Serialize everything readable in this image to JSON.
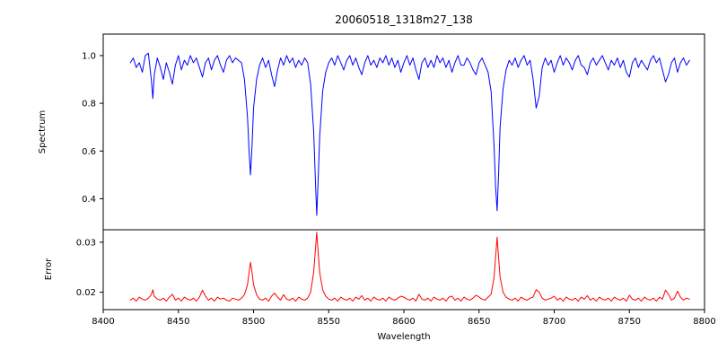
{
  "chart_data": {
    "type": "line",
    "title": "20060518_1318m27_138",
    "xlabel": "Wavelength",
    "xlim": [
      8400,
      8800
    ],
    "xticks": [
      8400,
      8450,
      8500,
      8550,
      8600,
      8650,
      8700,
      8750,
      8800
    ],
    "xtick_labels": [
      "8400",
      "8450",
      "8500",
      "8550",
      "8600",
      "8650",
      "8700",
      "8750",
      "8800"
    ],
    "panels": [
      {
        "ylabel": "Spectrum",
        "ylim": [
          0.27,
          1.09
        ],
        "yticks": [
          0.4,
          0.6,
          0.8,
          1.0
        ],
        "ytick_labels": [
          "0.4",
          "0.6",
          "0.8",
          "1.0"
        ],
        "color": "#0000ff",
        "series_key": "spectrum"
      },
      {
        "ylabel": "Error",
        "ylim": [
          0.0165,
          0.0325
        ],
        "yticks": [
          0.02,
          0.03
        ],
        "ytick_labels": [
          "0.02",
          "0.03"
        ],
        "color": "#ff0000",
        "series_key": "error"
      }
    ],
    "grid": false,
    "legend": "none",
    "x": [
      8418,
      8420,
      8422,
      8424,
      8426,
      8428,
      8430,
      8432,
      8433,
      8434,
      8436,
      8438,
      8440,
      8442,
      8444,
      8446,
      8448,
      8450,
      8452,
      8454,
      8456,
      8458,
      8460,
      8462,
      8464,
      8466,
      8468,
      8470,
      8472,
      8474,
      8476,
      8478,
      8480,
      8482,
      8484,
      8486,
      8488,
      8490,
      8492,
      8494,
      8496,
      8497,
      8498,
      8499,
      8500,
      8502,
      8504,
      8506,
      8508,
      8510,
      8512,
      8514,
      8516,
      8518,
      8520,
      8522,
      8524,
      8526,
      8528,
      8530,
      8532,
      8534,
      8536,
      8538,
      8540,
      8541,
      8542,
      8543,
      8544,
      8546,
      8548,
      8550,
      8552,
      8554,
      8556,
      8558,
      8560,
      8562,
      8564,
      8566,
      8568,
      8570,
      8572,
      8574,
      8576,
      8578,
      8580,
      8582,
      8584,
      8586,
      8588,
      8590,
      8592,
      8594,
      8596,
      8598,
      8600,
      8602,
      8604,
      8606,
      8608,
      8610,
      8612,
      8614,
      8616,
      8618,
      8620,
      8622,
      8624,
      8626,
      8628,
      8630,
      8632,
      8634,
      8636,
      8638,
      8640,
      8642,
      8644,
      8646,
      8648,
      8650,
      8652,
      8654,
      8656,
      8658,
      8660,
      8661,
      8662,
      8663,
      8664,
      8666,
      8668,
      8670,
      8672,
      8674,
      8676,
      8678,
      8680,
      8682,
      8684,
      8686,
      8688,
      8690,
      8692,
      8694,
      8696,
      8698,
      8700,
      8702,
      8704,
      8706,
      8708,
      8710,
      8712,
      8714,
      8716,
      8718,
      8720,
      8722,
      8724,
      8726,
      8728,
      8730,
      8732,
      8734,
      8736,
      8738,
      8740,
      8742,
      8744,
      8746,
      8748,
      8750,
      8752,
      8754,
      8756,
      8758,
      8760,
      8762,
      8764,
      8766,
      8768,
      8770,
      8772,
      8774,
      8776,
      8778,
      8780,
      8782,
      8784,
      8786,
      8788,
      8790
    ],
    "spectrum": [
      0.97,
      0.99,
      0.95,
      0.97,
      0.93,
      1.0,
      1.01,
      0.9,
      0.82,
      0.92,
      0.99,
      0.95,
      0.9,
      0.97,
      0.93,
      0.88,
      0.96,
      1.0,
      0.94,
      0.98,
      0.96,
      1.0,
      0.97,
      0.99,
      0.95,
      0.91,
      0.97,
      0.99,
      0.94,
      0.98,
      1.0,
      0.96,
      0.93,
      0.98,
      1.0,
      0.97,
      0.99,
      0.98,
      0.97,
      0.9,
      0.74,
      0.6,
      0.5,
      0.62,
      0.78,
      0.9,
      0.96,
      0.99,
      0.95,
      0.98,
      0.92,
      0.87,
      0.94,
      0.99,
      0.96,
      1.0,
      0.97,
      0.99,
      0.95,
      0.98,
      0.96,
      0.99,
      0.97,
      0.88,
      0.68,
      0.5,
      0.33,
      0.48,
      0.66,
      0.85,
      0.93,
      0.97,
      0.99,
      0.96,
      1.0,
      0.97,
      0.94,
      0.98,
      1.0,
      0.96,
      0.99,
      0.95,
      0.92,
      0.97,
      1.0,
      0.96,
      0.98,
      0.95,
      0.99,
      0.97,
      1.0,
      0.96,
      0.99,
      0.95,
      0.98,
      0.93,
      0.97,
      1.0,
      0.96,
      0.99,
      0.94,
      0.9,
      0.97,
      0.99,
      0.95,
      0.98,
      0.95,
      1.0,
      0.97,
      0.99,
      0.95,
      0.98,
      0.93,
      0.97,
      1.0,
      0.96,
      0.96,
      0.99,
      0.97,
      0.94,
      0.92,
      0.97,
      0.99,
      0.96,
      0.93,
      0.85,
      0.62,
      0.45,
      0.35,
      0.5,
      0.7,
      0.86,
      0.94,
      0.98,
      0.96,
      0.99,
      0.95,
      0.98,
      1.0,
      0.96,
      0.98,
      0.9,
      0.78,
      0.83,
      0.95,
      0.99,
      0.96,
      0.98,
      0.93,
      0.97,
      1.0,
      0.96,
      0.99,
      0.97,
      0.94,
      0.98,
      1.0,
      0.96,
      0.95,
      0.92,
      0.97,
      0.99,
      0.96,
      0.98,
      1.0,
      0.97,
      0.94,
      0.98,
      0.96,
      0.99,
      0.95,
      0.98,
      0.93,
      0.91,
      0.97,
      0.99,
      0.95,
      0.98,
      0.96,
      0.94,
      0.98,
      1.0,
      0.97,
      0.99,
      0.94,
      0.89,
      0.92,
      0.97,
      0.99,
      0.93,
      0.97,
      0.99,
      0.96,
      0.98
    ],
    "error": [
      0.0184,
      0.0188,
      0.0182,
      0.019,
      0.0186,
      0.0184,
      0.0188,
      0.0195,
      0.0205,
      0.0192,
      0.0186,
      0.0184,
      0.0188,
      0.0182,
      0.019,
      0.0196,
      0.0184,
      0.0188,
      0.0182,
      0.019,
      0.0186,
      0.0184,
      0.0188,
      0.0182,
      0.019,
      0.0204,
      0.0192,
      0.0184,
      0.0188,
      0.0182,
      0.019,
      0.0186,
      0.0188,
      0.0184,
      0.0182,
      0.0188,
      0.0186,
      0.0184,
      0.0188,
      0.0195,
      0.0215,
      0.024,
      0.026,
      0.024,
      0.0215,
      0.0195,
      0.0186,
      0.0184,
      0.0188,
      0.0182,
      0.0192,
      0.0198,
      0.019,
      0.0184,
      0.0195,
      0.0186,
      0.0184,
      0.0188,
      0.0182,
      0.019,
      0.0186,
      0.0184,
      0.0188,
      0.02,
      0.024,
      0.028,
      0.032,
      0.028,
      0.024,
      0.0205,
      0.0192,
      0.0186,
      0.0184,
      0.0188,
      0.0182,
      0.019,
      0.0186,
      0.0184,
      0.0188,
      0.0182,
      0.019,
      0.0186,
      0.0193,
      0.0184,
      0.0188,
      0.0182,
      0.019,
      0.0186,
      0.0184,
      0.0188,
      0.0182,
      0.019,
      0.0186,
      0.0184,
      0.0188,
      0.0192,
      0.019,
      0.0186,
      0.0184,
      0.0188,
      0.0182,
      0.0196,
      0.0186,
      0.0184,
      0.0188,
      0.0182,
      0.019,
      0.0186,
      0.0184,
      0.0188,
      0.0182,
      0.019,
      0.0192,
      0.0184,
      0.0188,
      0.0182,
      0.019,
      0.0186,
      0.0184,
      0.0188,
      0.0194,
      0.019,
      0.0186,
      0.0184,
      0.019,
      0.0196,
      0.023,
      0.027,
      0.031,
      0.027,
      0.023,
      0.02,
      0.019,
      0.0186,
      0.0184,
      0.0188,
      0.0182,
      0.019,
      0.0186,
      0.0184,
      0.0188,
      0.019,
      0.0205,
      0.02,
      0.0188,
      0.0184,
      0.0186,
      0.0188,
      0.0192,
      0.0184,
      0.0188,
      0.0182,
      0.019,
      0.0186,
      0.0184,
      0.0188,
      0.0182,
      0.019,
      0.0186,
      0.0193,
      0.0184,
      0.0188,
      0.0182,
      0.019,
      0.0186,
      0.0184,
      0.0188,
      0.0182,
      0.019,
      0.0186,
      0.0184,
      0.0188,
      0.0182,
      0.0194,
      0.0186,
      0.0184,
      0.0188,
      0.0182,
      0.019,
      0.0186,
      0.0184,
      0.0188,
      0.0182,
      0.019,
      0.0186,
      0.0204,
      0.0196,
      0.0184,
      0.0188,
      0.0202,
      0.019,
      0.0184,
      0.0188,
      0.0186
    ]
  }
}
